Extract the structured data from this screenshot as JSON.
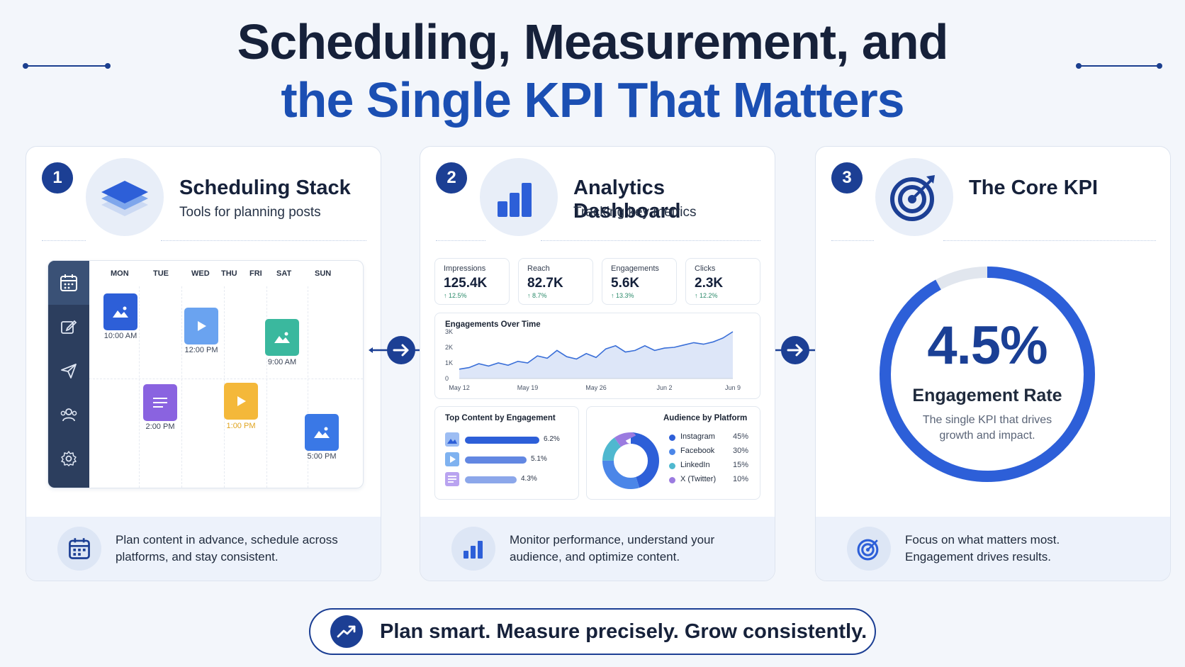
{
  "title": {
    "line1": "Scheduling, Measurement, and",
    "line2": "the Single KPI That Matters"
  },
  "colors": {
    "navy": "#1c3f94",
    "accent_blue": "#1b4fb3",
    "background": "#f3f6fb",
    "chart_line": "#3a6fd8",
    "instagram": "#2d5fd8",
    "facebook": "#4b86e8",
    "linkedin": "#4fb8cf",
    "x_twitter": "#9b7be0"
  },
  "panels": {
    "scheduling": {
      "step": "1",
      "icon": "layers-stack-icon",
      "title": "Scheduling Stack",
      "subtitle": "Tools for planning posts",
      "days": [
        "MON",
        "TUE",
        "WED",
        "THU",
        "FRI",
        "SAT",
        "SUN"
      ],
      "sidebar_icons": [
        "calendar-icon",
        "edit-icon",
        "send-icon",
        "users-icon",
        "settings-icon"
      ],
      "posts": [
        {
          "day": "MON",
          "time": "10:00 AM",
          "type": "image",
          "color": "#2d5fd8"
        },
        {
          "day": "WED",
          "time": "12:00 PM",
          "type": "video",
          "color": "#6aa3f0"
        },
        {
          "day": "SAT",
          "time": "9:00 AM",
          "type": "image",
          "color": "#3ab89e"
        },
        {
          "day": "TUE",
          "time": "2:00 PM",
          "type": "text",
          "color": "#8a63e0"
        },
        {
          "day": "THU",
          "time": "1:00 PM",
          "type": "video",
          "color": "#f4b83a"
        },
        {
          "day": "SUN",
          "time": "5:00 PM",
          "type": "image",
          "color": "#3a78e6"
        }
      ],
      "footer_icon": "calendar-icon",
      "footer_text_line1": "Plan content in advance, schedule across",
      "footer_text_line2": "platforms, and stay consistent."
    },
    "analytics": {
      "step": "2",
      "icon": "bar-chart-icon",
      "title": "Analytics Dashboard",
      "subtitle": "Tracking key metrics",
      "kpis": [
        {
          "label": "Impressions",
          "value": "125.4K",
          "delta": "↑ 12.5%"
        },
        {
          "label": "Reach",
          "value": "82.7K",
          "delta": "↑ 8.7%"
        },
        {
          "label": "Engagements",
          "value": "5.6K",
          "delta": "↑ 13.3%"
        },
        {
          "label": "Clicks",
          "value": "2.3K",
          "delta": "↑ 12.2%"
        }
      ],
      "top_content": {
        "title": "Top Content by Engagement",
        "items": [
          {
            "type": "image",
            "value": "6.2%",
            "share": 0.62
          },
          {
            "type": "video",
            "value": "5.1%",
            "share": 0.51
          },
          {
            "type": "text",
            "value": "4.3%",
            "share": 0.43
          }
        ]
      },
      "audience": {
        "title": "Audience by Platform",
        "rows": [
          {
            "name": "Instagram",
            "pct": "45%"
          },
          {
            "name": "Facebook",
            "pct": "30%"
          },
          {
            "name": "LinkedIn",
            "pct": "15%"
          },
          {
            "name": "X (Twitter)",
            "pct": "10%"
          }
        ]
      },
      "footer_icon": "bar-chart-icon",
      "footer_text_line1": "Monitor performance, understand your",
      "footer_text_line2": "audience, and optimize content."
    },
    "kpi": {
      "step": "3",
      "icon": "target-icon",
      "title": "The Core KPI",
      "value": "4.5%",
      "fill_fraction": 0.92,
      "label": "Engagement Rate",
      "description_line1": "The single KPI that drives",
      "description_line2": "growth and impact.",
      "footer_icon": "target-icon",
      "footer_text_line1": "Focus on what matters most.",
      "footer_text_line2": "Engagement drives results."
    }
  },
  "tagline": {
    "icon": "trend-up-icon",
    "text": "Plan smart. Measure precisely. Grow consistently."
  },
  "chart_data": [
    {
      "type": "area",
      "title": "Engagements Over Time",
      "x_ticks": [
        "May 12",
        "May 19",
        "May 26",
        "Jun 2",
        "Jun 9"
      ],
      "y_ticks": [
        "0",
        "1K",
        "2K",
        "3K"
      ],
      "ylim": [
        0,
        3000
      ],
      "x": [
        "May 12",
        "May 13",
        "May 14",
        "May 15",
        "May 16",
        "May 17",
        "May 18",
        "May 19",
        "May 20",
        "May 21",
        "May 22",
        "May 23",
        "May 24",
        "May 25",
        "May 26",
        "May 27",
        "May 28",
        "May 29",
        "May 30",
        "May 31",
        "Jun 1",
        "Jun 2",
        "Jun 3",
        "Jun 4",
        "Jun 5",
        "Jun 6",
        "Jun 7",
        "Jun 8",
        "Jun 9"
      ],
      "values": [
        600,
        700,
        950,
        800,
        1000,
        850,
        1100,
        1000,
        1450,
        1300,
        1800,
        1400,
        1250,
        1600,
        1350,
        1900,
        2100,
        1700,
        1800,
        2100,
        1800,
        1950,
        2000,
        2150,
        2300,
        2200,
        2350,
        2600,
        3000
      ],
      "grid": false
    },
    {
      "type": "pie",
      "title": "Audience by Platform",
      "categories": [
        "Instagram",
        "Facebook",
        "LinkedIn",
        "X (Twitter)"
      ],
      "values": [
        45,
        30,
        15,
        10
      ]
    },
    {
      "type": "bar",
      "title": "Top Content by Engagement",
      "categories": [
        "image",
        "video",
        "text"
      ],
      "values": [
        6.2,
        5.1,
        4.3
      ]
    }
  ]
}
